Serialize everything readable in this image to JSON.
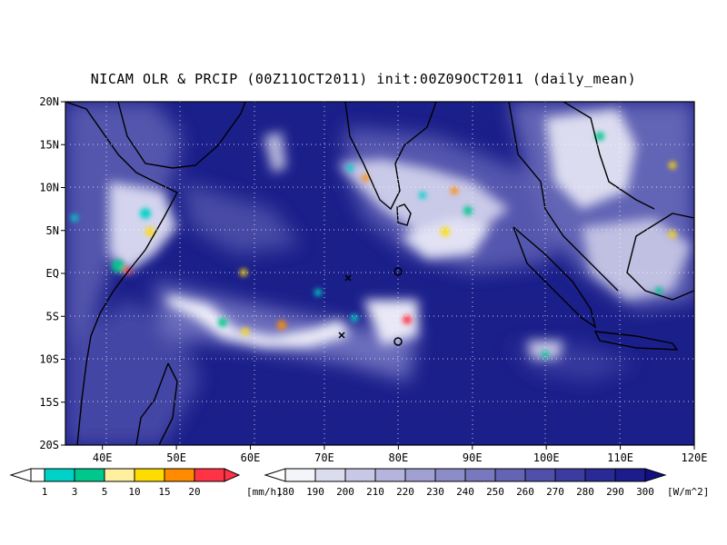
{
  "title": "NICAM OLR & PRCIP (00Z11OCT2011) init:00Z09OCT2011 (daily_mean)",
  "map": {
    "lat_labels": [
      "20N",
      "15N",
      "10N",
      "5N",
      "EQ",
      "5S",
      "10S",
      "15S",
      "20S"
    ],
    "lon_labels": [
      "40E",
      "50E",
      "60E",
      "70E",
      "80E",
      "90E",
      "100E",
      "110E",
      "120E"
    ],
    "lat_range": [
      -20,
      20
    ],
    "lon_range": [
      35,
      120
    ],
    "grid": "dotted",
    "background_color": "#1b1f8a",
    "coast_color": "#000000"
  },
  "colorbar_precip": {
    "unit": "[mm/h]",
    "labels": [
      "1",
      "3",
      "5",
      "10",
      "15",
      "20"
    ],
    "colors": [
      "#00d2c8",
      "#00c88c",
      "#fff0a0",
      "#ffdc00",
      "#ff8c00",
      "#ff3246"
    ]
  },
  "colorbar_olr": {
    "unit": "[W/m^2]",
    "labels": [
      "180",
      "190",
      "200",
      "210",
      "220",
      "230",
      "240",
      "250",
      "260",
      "270",
      "280",
      "290",
      "300"
    ],
    "colors": [
      "#f4f4fb",
      "#dcdcef",
      "#c8c8e6",
      "#b4b4dc",
      "#a0a0d2",
      "#8c8cc8",
      "#7878be",
      "#6464b4",
      "#5050aa",
      "#3c3ca0",
      "#2a2a96",
      "#1c1c8c",
      "#101082"
    ]
  }
}
